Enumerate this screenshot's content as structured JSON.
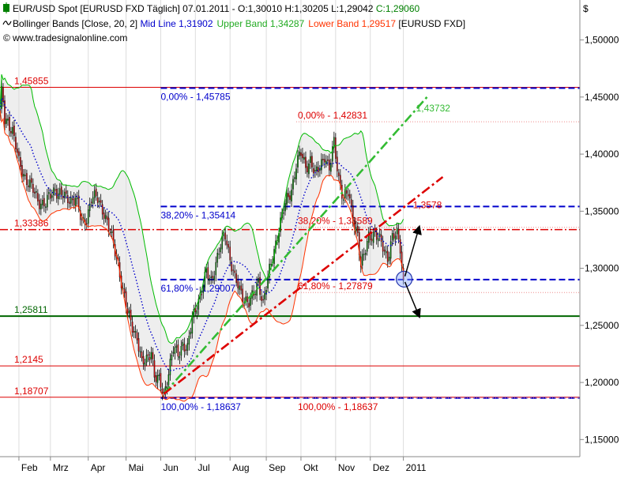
{
  "header": {
    "line1": "EUR/USD Spot [EURUSD FXD  Täglich] 07.01.2011 - O:1,30010 H:1,30205 L:1,29042 ",
    "line1_close": "C:1,29060",
    "line2_prefix": "Bollinger Bands [Close, 20, 2] ",
    "line2_mid": "Mid Line 1,31902",
    "line2_upper": "Upper Band 1,34287",
    "line2_lower": "Lower Band 1,29517",
    "line2_suffix": " [EURUSD FXD]",
    "line3": "www.tradesignalonline.com"
  },
  "colors": {
    "bull": "#007a00",
    "bear": "#c00000",
    "wick": "#000000",
    "midline": "#0000cc",
    "upper_band": "#00bb00",
    "lower_band": "#ff3300",
    "band_fill": "#eeeeee",
    "support_red": "#dd0000",
    "support_green": "#006600",
    "fib_blue": "#0000cc",
    "trend_green": "#33bb33",
    "trend_red": "#dd0000"
  },
  "chart_data": {
    "type": "candlestick",
    "symbol": "EUR/USD Spot [EURUSD FXD Täglich]",
    "unit_label": "$",
    "ylim": [
      1.135,
      1.535
    ],
    "y_ticks": [
      "1,50000",
      "1,45000",
      "1,40000",
      "1,35000",
      "1,30000",
      "1,25000",
      "1,20000",
      "1,15000"
    ],
    "y_tick_values": [
      1.5,
      1.45,
      1.4,
      1.35,
      1.3,
      1.25,
      1.2,
      1.15
    ],
    "x_range": [
      0,
      368
    ],
    "x_ticks": [
      {
        "label": "Feb",
        "x": 12
      },
      {
        "label": "Mrz",
        "x": 32
      },
      {
        "label": "Apr",
        "x": 56
      },
      {
        "label": "Mai",
        "x": 80
      },
      {
        "label": "Jun",
        "x": 102
      },
      {
        "label": "Jul",
        "x": 124
      },
      {
        "label": "Aug",
        "x": 146
      },
      {
        "label": "Sep",
        "x": 169
      },
      {
        "label": "Okt",
        "x": 191
      },
      {
        "label": "Nov",
        "x": 213
      },
      {
        "label": "Dez",
        "x": 235
      },
      {
        "label": "2011",
        "x": 256
      }
    ],
    "anchors": [
      {
        "x": 0,
        "c": 1.436
      },
      {
        "x": 1,
        "c": 1.452
      },
      {
        "x": 2,
        "c": 1.445
      },
      {
        "x": 3,
        "c": 1.43
      },
      {
        "x": 5,
        "c": 1.43
      },
      {
        "x": 8,
        "c": 1.42
      },
      {
        "x": 12,
        "c": 1.392
      },
      {
        "x": 18,
        "c": 1.375
      },
      {
        "x": 24,
        "c": 1.36
      },
      {
        "x": 29,
        "c": 1.356
      },
      {
        "x": 35,
        "c": 1.37
      },
      {
        "x": 42,
        "c": 1.36
      },
      {
        "x": 48,
        "c": 1.362
      },
      {
        "x": 52,
        "c": 1.338
      },
      {
        "x": 55,
        "c": 1.345
      },
      {
        "x": 58,
        "c": 1.362
      },
      {
        "x": 62,
        "c": 1.36
      },
      {
        "x": 66,
        "c": 1.35
      },
      {
        "x": 69,
        "c": 1.335
      },
      {
        "x": 72,
        "c": 1.32
      },
      {
        "x": 75,
        "c": 1.305
      },
      {
        "x": 78,
        "c": 1.28
      },
      {
        "x": 81,
        "c": 1.26
      },
      {
        "x": 84,
        "c": 1.25
      },
      {
        "x": 87,
        "c": 1.24
      },
      {
        "x": 90,
        "c": 1.215
      },
      {
        "x": 93,
        "c": 1.22
      },
      {
        "x": 96,
        "c": 1.23
      },
      {
        "x": 98,
        "c": 1.205
      },
      {
        "x": 101,
        "c": 1.2
      },
      {
        "x": 104,
        "c": 1.19
      },
      {
        "x": 107,
        "c": 1.21
      },
      {
        "x": 110,
        "c": 1.228
      },
      {
        "x": 113,
        "c": 1.225
      },
      {
        "x": 116,
        "c": 1.235
      },
      {
        "x": 119,
        "c": 1.228
      },
      {
        "x": 122,
        "c": 1.255
      },
      {
        "x": 125,
        "c": 1.27
      },
      {
        "x": 128,
        "c": 1.28
      },
      {
        "x": 131,
        "c": 1.295
      },
      {
        "x": 134,
        "c": 1.29
      },
      {
        "x": 137,
        "c": 1.305
      },
      {
        "x": 140,
        "c": 1.318
      },
      {
        "x": 143,
        "c": 1.33
      },
      {
        "x": 146,
        "c": 1.31
      },
      {
        "x": 149,
        "c": 1.29
      },
      {
        "x": 152,
        "c": 1.28
      },
      {
        "x": 155,
        "c": 1.275
      },
      {
        "x": 158,
        "c": 1.27
      },
      {
        "x": 161,
        "c": 1.275
      },
      {
        "x": 164,
        "c": 1.29
      },
      {
        "x": 167,
        "c": 1.27
      },
      {
        "x": 170,
        "c": 1.29
      },
      {
        "x": 173,
        "c": 1.31
      },
      {
        "x": 176,
        "c": 1.33
      },
      {
        "x": 179,
        "c": 1.345
      },
      {
        "x": 182,
        "c": 1.36
      },
      {
        "x": 185,
        "c": 1.37
      },
      {
        "x": 188,
        "c": 1.39
      },
      {
        "x": 191,
        "c": 1.4
      },
      {
        "x": 194,
        "c": 1.39
      },
      {
        "x": 197,
        "c": 1.395
      },
      {
        "x": 200,
        "c": 1.38
      },
      {
        "x": 203,
        "c": 1.39
      },
      {
        "x": 206,
        "c": 1.4
      },
      {
        "x": 209,
        "c": 1.385
      },
      {
        "x": 212,
        "c": 1.41
      },
      {
        "x": 215,
        "c": 1.38
      },
      {
        "x": 218,
        "c": 1.36
      },
      {
        "x": 221,
        "c": 1.365
      },
      {
        "x": 224,
        "c": 1.345
      },
      {
        "x": 227,
        "c": 1.33
      },
      {
        "x": 229,
        "c": 1.3
      },
      {
        "x": 231,
        "c": 1.31
      },
      {
        "x": 234,
        "c": 1.33
      },
      {
        "x": 237,
        "c": 1.33
      },
      {
        "x": 240,
        "c": 1.325
      },
      {
        "x": 243,
        "c": 1.32
      },
      {
        "x": 246,
        "c": 1.31
      },
      {
        "x": 249,
        "c": 1.325
      },
      {
        "x": 252,
        "c": 1.33
      },
      {
        "x": 254,
        "c": 1.32
      },
      {
        "x": 256,
        "c": 1.29
      }
    ],
    "horizontal_levels": [
      {
        "label": "1,45855",
        "value": 1.45855,
        "style": "thin-red"
      },
      {
        "label": "1,33386",
        "value": 1.33386,
        "style": "dashdot-red"
      },
      {
        "label": "1,25811",
        "value": 1.25811,
        "style": "thick-green"
      },
      {
        "label": "1,2145",
        "value": 1.2145,
        "style": "thin-red"
      },
      {
        "label": "1,18707",
        "value": 1.18707,
        "style": "thin-red"
      }
    ],
    "fib_blue": {
      "x_start": 102,
      "levels": [
        {
          "label": "0,00% - 1,45785",
          "value": 1.45785
        },
        {
          "label": "38,20% - 1,35414",
          "value": 1.35414
        },
        {
          "label": "61,80% - 1,29007",
          "value": 1.29007
        },
        {
          "label": "100,00% - 1,18637",
          "value": 1.18637
        }
      ]
    },
    "fib_red": {
      "x_start": 191,
      "levels": [
        {
          "label": "0,00% - 1,42831",
          "value": 1.42831
        },
        {
          "label": "38,20% - 1,33589",
          "value": 1.33589
        },
        {
          "label": "61,80% - 1,27879",
          "value": 1.27879
        },
        {
          "label": "100,00% - 1,18637",
          "value": 1.18637
        }
      ]
    },
    "trendlines": [
      {
        "name": "green",
        "x1": 104,
        "y1": 1.19,
        "x2": 271,
        "y2": 1.45,
        "end_label": "1,43732",
        "label_x": 264,
        "label_y": 1.43732
      },
      {
        "name": "red",
        "x1": 104,
        "y1": 1.19,
        "x2": 281,
        "y2": 1.38,
        "end_label": "1,3578",
        "label_x": 262,
        "label_y": 1.3528
      }
    ],
    "arrows": [
      {
        "x1": 257,
        "y1": 1.293,
        "x2": 266,
        "y2": 1.336
      },
      {
        "x1": 257,
        "y1": 1.288,
        "x2": 266,
        "y2": 1.258
      }
    ],
    "marker": {
      "x": 256.5,
      "y": 1.2905
    }
  }
}
